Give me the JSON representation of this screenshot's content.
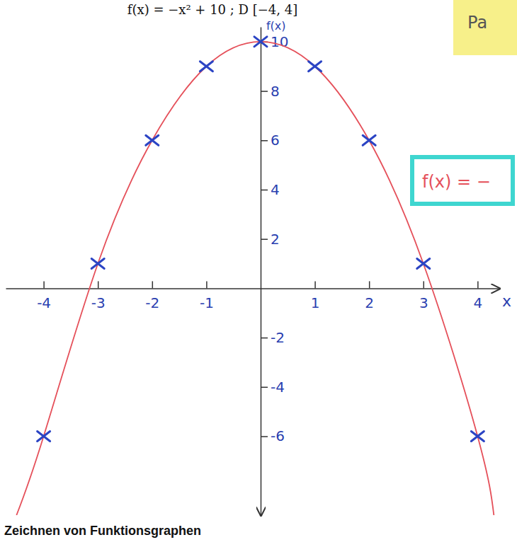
{
  "chart_data": {
    "type": "line",
    "title": "f(x) = −x² + 10 ; D [−4, 4]",
    "x_label": "x",
    "y_label": "f(x)",
    "annotations": [
      "Zeichnen von Funktionsgraphen",
      "Pa",
      "f(x) = −"
    ],
    "xlim": [
      -4.7,
      4.4
    ],
    "ylim": [
      -9.2,
      10.6
    ],
    "xticks": [
      -4,
      -3,
      -2,
      -1,
      1,
      2,
      3,
      4
    ],
    "yticks": [
      -6,
      -4,
      -2,
      2,
      4,
      6,
      8,
      10
    ],
    "grid": false,
    "series": [
      {
        "type": "line",
        "color": "#e5505a",
        "line_style": "solid",
        "marker": "none",
        "x": [
          -4.5,
          -4,
          -3,
          -2,
          -1,
          0,
          1,
          2,
          3,
          4,
          4.3
        ],
        "values": [
          -9.2,
          -6,
          1,
          6,
          9,
          10,
          9,
          6,
          1,
          -6,
          -9.2
        ]
      },
      {
        "type": "scatter",
        "color": "#2b44c4",
        "line_style": "none",
        "marker": "x",
        "x": [
          -4,
          -3,
          -2,
          -1,
          0,
          1,
          2,
          3,
          4
        ],
        "values": [
          -6,
          1,
          6,
          9,
          10,
          9,
          6,
          1,
          -6
        ]
      }
    ]
  }
}
